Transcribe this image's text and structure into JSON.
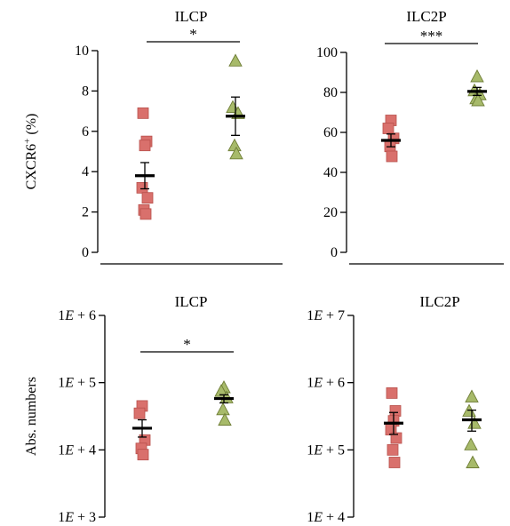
{
  "chart_data": [
    {
      "type": "scatter",
      "title": "ILCP",
      "ylabel": "CXCR6",
      "ylabel_sup": "+",
      "ylabel_unit": " (%)",
      "yscale": "linear",
      "ylim": [
        0,
        10
      ],
      "yticks": [
        0,
        2,
        4,
        6,
        8,
        10
      ],
      "ytick_labels": [
        "0",
        "2",
        "4",
        "6",
        "8",
        "10"
      ],
      "significance": "*",
      "series": [
        {
          "marker": "square",
          "color": "#d9706c",
          "values": [
            6.9,
            5.5,
            5.3,
            3.2,
            2.7,
            2.1,
            1.9
          ],
          "mean": 3.8,
          "sem": 0.65
        },
        {
          "marker": "triangle",
          "color": "#a7ba6a",
          "values": [
            9.5,
            7.2,
            6.9,
            5.3,
            4.9
          ],
          "mean": 6.75,
          "sem": 0.95
        }
      ]
    },
    {
      "type": "scatter",
      "title": "ILC2P",
      "ylabel": "",
      "yscale": "linear",
      "ylim": [
        0,
        100
      ],
      "yticks": [
        0,
        20,
        40,
        60,
        80,
        100
      ],
      "ytick_labels": [
        "0",
        "20",
        "40",
        "60",
        "80",
        "100"
      ],
      "significance": "***",
      "series": [
        {
          "marker": "square",
          "color": "#d9706c",
          "values": [
            66,
            62,
            57,
            53,
            48
          ],
          "mean": 56,
          "sem": 3.2
        },
        {
          "marker": "triangle",
          "color": "#a7ba6a",
          "values": [
            88,
            81,
            79,
            77,
            76
          ],
          "mean": 80.5,
          "sem": 2.0
        }
      ]
    },
    {
      "type": "scatter",
      "title": "ILCP",
      "ylabel": "Abs. numbers",
      "yscale": "log",
      "ylim": [
        1000,
        1000000
      ],
      "yticks": [
        1000,
        10000,
        100000,
        1000000
      ],
      "ytick_labels": [
        "1E + 3",
        "1E + 4",
        "1E + 5",
        "1E + 6"
      ],
      "significance": "*",
      "series": [
        {
          "marker": "square",
          "color": "#d9706c",
          "values": [
            45000,
            35000,
            14000,
            10500,
            8500
          ],
          "mean": 21000,
          "sem_low": 15500,
          "sem_high": 28000
        },
        {
          "marker": "triangle",
          "color": "#a7ba6a",
          "values": [
            85000,
            75000,
            60000,
            40000,
            28000
          ],
          "mean": 58000,
          "sem_low": 50000,
          "sem_high": 66000
        }
      ]
    },
    {
      "type": "scatter",
      "title": "ILC2P",
      "ylabel": "",
      "yscale": "log",
      "ylim": [
        10000,
        10000000
      ],
      "yticks": [
        10000,
        100000,
        1000000,
        10000000
      ],
      "ytick_labels": [
        "1E + 4",
        "1E + 5",
        "1E + 6",
        "1E + 7"
      ],
      "significance": "",
      "series": [
        {
          "marker": "square",
          "color": "#d9706c",
          "values": [
            700000,
            380000,
            270000,
            200000,
            150000,
            100000,
            65000
          ],
          "mean": 250000,
          "sem_low": 170000,
          "sem_high": 360000
        },
        {
          "marker": "triangle",
          "color": "#a7ba6a",
          "values": [
            620000,
            380000,
            250000,
            120000,
            65000
          ],
          "mean": 280000,
          "sem_low": 190000,
          "sem_high": 390000
        }
      ]
    }
  ]
}
